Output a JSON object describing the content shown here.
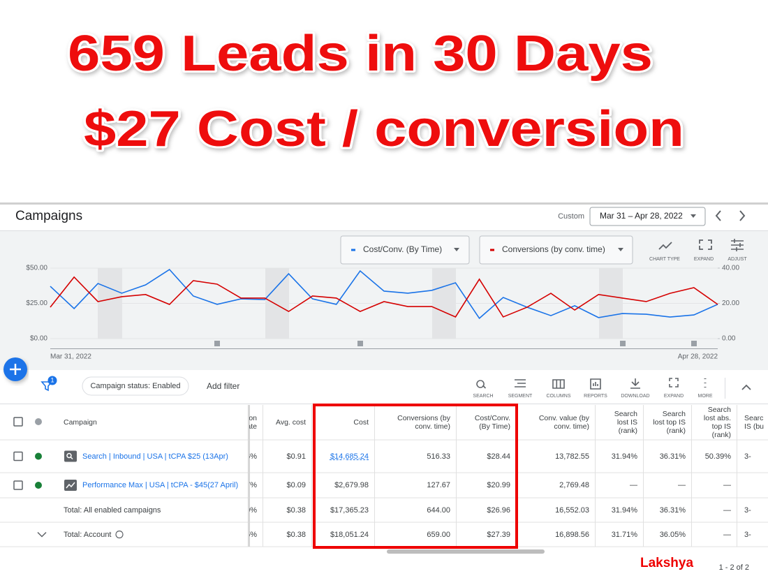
{
  "banner": {
    "line1": "659 Leads in 30 Days",
    "line2": "$27 Cost / conversion"
  },
  "header": {
    "title": "Campaigns",
    "range_label": "Custom",
    "date_range": "Mar 31 – Apr 28, 2022"
  },
  "chart_toolbar": [
    "CHART TYPE",
    "EXPAND",
    "ADJUST"
  ],
  "chart_data": {
    "type": "line",
    "categories": [
      "Mar 31, 2022",
      null,
      null,
      null,
      null,
      null,
      null,
      null,
      null,
      null,
      null,
      null,
      null,
      null,
      null,
      null,
      null,
      null,
      null,
      null,
      null,
      null,
      null,
      null,
      null,
      null,
      null,
      null,
      "Apr 28, 2022"
    ],
    "series": [
      {
        "name": "Cost/Conv. (By Time)",
        "color": "#1a73e8",
        "axis": "y",
        "values": [
          37.1,
          21.3,
          39.1,
          32.2,
          38.1,
          49.0,
          30.2,
          24.3,
          28.2,
          27.7,
          46.0,
          28.2,
          24.3,
          48.0,
          33.7,
          32.2,
          34.2,
          39.6,
          14.4,
          29.2,
          22.3,
          16.3,
          23.3,
          14.9,
          17.8,
          17.3,
          15.3,
          16.8,
          24.3
        ]
      },
      {
        "name": "Conversions (by conv. time)",
        "color": "#d50000",
        "axis": "y2",
        "values": [
          17.8,
          34.9,
          21.0,
          23.8,
          25.0,
          19.4,
          32.9,
          30.9,
          23.0,
          23.0,
          15.4,
          24.2,
          23.0,
          15.4,
          21.0,
          18.2,
          18.2,
          12.3,
          33.7,
          12.3,
          17.8,
          25.7,
          16.2,
          25.0,
          23.0,
          21.0,
          25.7,
          28.9,
          19.4
        ]
      }
    ],
    "ylim": [
      0,
      50
    ],
    "yticks": [
      {
        "value": 0,
        "label": "$0.00"
      },
      {
        "value": 25,
        "label": "$25.00"
      },
      {
        "value": 50,
        "label": "$50.00"
      }
    ],
    "y2lim": [
      0,
      40
    ],
    "y2ticks": [
      {
        "value": 0,
        "label": "0.00"
      },
      {
        "value": 20,
        "label": "20.00"
      },
      {
        "value": 40,
        "label": "40.00"
      }
    ],
    "grid": true
  },
  "filters": {
    "count": 1,
    "chip": "Campaign status: Enabled",
    "add": "Add filter"
  },
  "table_toolbar": [
    "SEARCH",
    "SEGMENT",
    "COLUMNS",
    "REPORTS",
    "DOWNLOAD",
    "EXPAND",
    "MORE"
  ],
  "table": {
    "columns": [
      "Campaign",
      "on\nate",
      "Avg. cost",
      "Cost",
      "Conversions (by conv. time)",
      "Cost/Conv. (By Time)",
      "Conv. value (by conv. time)",
      "Search lost IS (rank)",
      "Search lost top IS (rank)",
      "Search lost abs. top IS (rank)",
      "Searc\nIS (bu"
    ],
    "rows": [
      [
        "Search | Inbound | USA | tCPA $25 (13Apr)",
        "6%",
        "$0.91",
        "$14,685.24",
        "516.33",
        "$28.44",
        "13,782.55",
        "31.94%",
        "36.31%",
        "50.39%",
        "3-"
      ],
      [
        "Performance Max | USA | tCPA - $45(27 April)",
        "7%",
        "$0.09",
        "$2,679.98",
        "127.67",
        "$20.99",
        "2,769.48",
        "—",
        "—",
        "—",
        null
      ],
      [
        "Total: All enabled campaigns",
        "0%",
        "$0.38",
        "$17,365.23",
        "644.00",
        "$26.96",
        "16,552.03",
        "31.94%",
        "36.31%",
        "—",
        "3-"
      ],
      [
        "Total: Account",
        "5%",
        "$0.38",
        "$18,051.24",
        "659.00",
        "$27.39",
        "16,898.56",
        "31.71%",
        "36.05%",
        "—",
        "3-"
      ]
    ]
  },
  "footer": {
    "brand": "Lakshya",
    "pagination": "1 - 2 of 2"
  }
}
